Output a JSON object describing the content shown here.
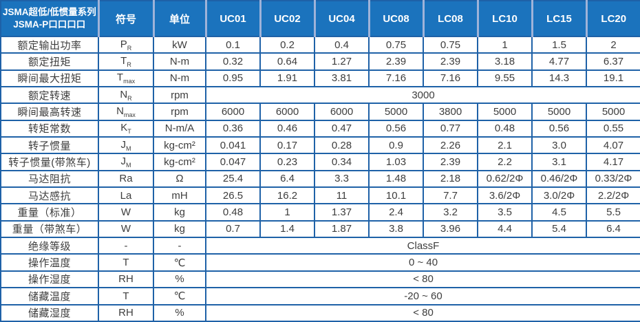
{
  "table": {
    "header": {
      "title_line1": "JSMA超低/低惯量系列",
      "title_line2": "JSMA-P口口口口",
      "symbol_label": "符号",
      "unit_label": "单位",
      "models": [
        "UC01",
        "UC02",
        "UC04",
        "UC08",
        "LC08",
        "LC10",
        "LC15",
        "LC20"
      ]
    },
    "rows": [
      {
        "label": "额定输出功率",
        "symbol": "P",
        "sub": "R",
        "unit": "kW",
        "values": [
          "0.1",
          "0.2",
          "0.4",
          "0.75",
          "0.75",
          "1",
          "1.5",
          "2"
        ]
      },
      {
        "label": "额定扭矩",
        "symbol": "T",
        "sub": "R",
        "unit": "N-m",
        "values": [
          "0.32",
          "0.64",
          "1.27",
          "2.39",
          "2.39",
          "3.18",
          "4.77",
          "6.37"
        ]
      },
      {
        "label": "瞬间最大扭矩",
        "symbol": "T",
        "sub": "max",
        "unit": "N-m",
        "values": [
          "0.95",
          "1.91",
          "3.81",
          "7.16",
          "7.16",
          "9.55",
          "14.3",
          "19.1"
        ]
      },
      {
        "label": "额定转速",
        "symbol": "N",
        "sub": "R",
        "unit": "rpm",
        "span": "3000"
      },
      {
        "label": "瞬间最高转速",
        "symbol": "N",
        "sub": "max",
        "unit": "rpm",
        "values": [
          "6000",
          "6000",
          "6000",
          "5000",
          "3800",
          "5000",
          "5000",
          "5000"
        ]
      },
      {
        "label": "转矩常数",
        "symbol": "K",
        "sub": "T",
        "unit": "N-m/A",
        "values": [
          "0.36",
          "0.46",
          "0.47",
          "0.56",
          "0.77",
          "0.48",
          "0.56",
          "0.55"
        ]
      },
      {
        "label": "转子惯量",
        "symbol": "J",
        "sub": "M",
        "unit": "kg-cm²",
        "values": [
          "0.041",
          "0.17",
          "0.28",
          "0.9",
          "2.26",
          "2.1",
          "3.0",
          "4.07"
        ]
      },
      {
        "label": "转子惯量(带煞车)",
        "symbol": "J",
        "sub": "M",
        "unit": "kg-cm²",
        "values": [
          "0.047",
          "0.23",
          "0.34",
          "1.03",
          "2.39",
          "2.2",
          "3.1",
          "4.17"
        ]
      },
      {
        "label": "马达阻抗",
        "symbol": "Ra",
        "sub": "",
        "unit": "Ω",
        "values": [
          "25.4",
          "6.4",
          "3.3",
          "1.48",
          "2.18",
          "0.62/2Φ",
          "0.46/2Φ",
          "0.33/2Φ"
        ]
      },
      {
        "label": "马达感抗",
        "symbol": "La",
        "sub": "",
        "unit": "mH",
        "values": [
          "26.5",
          "16.2",
          "11",
          "10.1",
          "7.7",
          "3.6/2Φ",
          "3.0/2Φ",
          "2.2/2Φ"
        ]
      },
      {
        "label": "重量（标准）",
        "symbol": "W",
        "sub": "",
        "unit": "kg",
        "values": [
          "0.48",
          "1",
          "1.37",
          "2.4",
          "3.2",
          "3.5",
          "4.5",
          "5.5"
        ]
      },
      {
        "label": "重量（带煞车）",
        "symbol": "W",
        "sub": "",
        "unit": "kg",
        "values": [
          "0.7",
          "1.4",
          "1.87",
          "3.8",
          "3.96",
          "4.4",
          "5.4",
          "6.4"
        ]
      },
      {
        "label": "绝缘等级",
        "symbol": "-",
        "sub": "",
        "unit": "-",
        "span": "ClassF"
      },
      {
        "label": "操作温度",
        "symbol": "T",
        "sub": "",
        "unit": "℃",
        "span": "0 ~ 40"
      },
      {
        "label": "操作湿度",
        "symbol": "RH",
        "sub": "",
        "unit": "%",
        "span": "< 80"
      },
      {
        "label": "储藏温度",
        "symbol": "T",
        "sub": "",
        "unit": "℃",
        "span": "-20 ~ 60"
      },
      {
        "label": "储藏湿度",
        "symbol": "RH",
        "sub": "",
        "unit": "%",
        "span": "< 80"
      }
    ],
    "colors": {
      "header_bg": "#1b73bd",
      "grid_line": "#1e61a7",
      "header_separator": "#9fb3d9",
      "header_text": "#ffffff",
      "body_text": "#3d3d3d"
    }
  }
}
